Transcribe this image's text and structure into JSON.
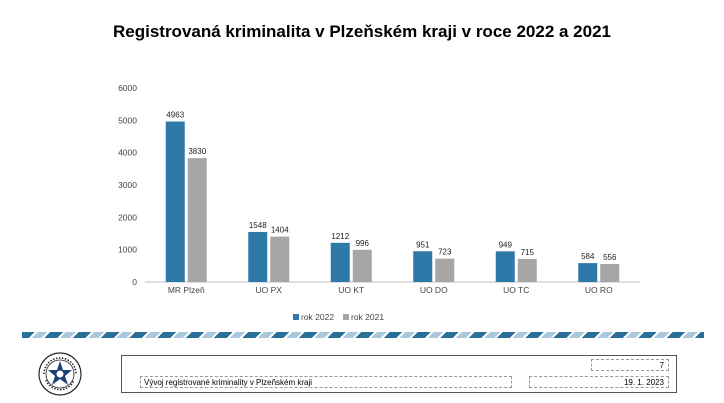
{
  "title": "Registrovaná kriminalita v Plzeňském kraji v roce 2022 a 2021",
  "colors": {
    "series_2022": "#2f79a8",
    "series_2021": "#a6a6a6",
    "axis": "#bfbfbf",
    "divider": "#2a6f98"
  },
  "icons": {
    "logo": "police-star-emblem"
  },
  "footer": {
    "page_number": "7",
    "description": "Vývoj registrované kriminality v Plzeňském kraji",
    "date": "19. 1. 2023"
  },
  "chart_data": {
    "type": "bar",
    "title": "Registrovaná kriminalita v Plzeňském kraji v roce 2022 a 2021",
    "categories": [
      "MR Plzeň",
      "UO PX",
      "UO KT",
      "UO DO",
      "UO TC",
      "UO RO"
    ],
    "series": [
      {
        "name": "rok 2022",
        "values": [
          4963,
          1548,
          1212,
          951,
          949,
          584
        ]
      },
      {
        "name": "rok 2021",
        "values": [
          3830,
          1404,
          996,
          723,
          715,
          556
        ]
      }
    ],
    "ylim": [
      0,
      6000
    ],
    "yticks": [
      0,
      1000,
      2000,
      3000,
      4000,
      5000,
      6000
    ],
    "grid": false,
    "legend": "bottom"
  }
}
